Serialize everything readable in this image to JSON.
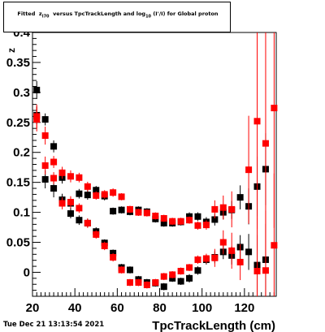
{
  "title_parts": {
    "prefix": "Fitted",
    "z": "z",
    "z_sub": "I70",
    "mid": "versus TpcTrackLength and log",
    "log_sub": "10",
    "suffix": "(I'/I) for Global proton"
  },
  "timestamp": "Tue Dec 21 13:13:54 2021",
  "colors": {
    "series_black": "#000000",
    "series_red": "#ff0000",
    "axis": "#000000"
  },
  "chart_data": {
    "type": "scatter",
    "xlabel": "TpcTrackLength (cm)",
    "ylabel": "z",
    "xlim": [
      20,
      135
    ],
    "ylim": [
      -0.04,
      0.4
    ],
    "x_ticks": [
      20,
      40,
      60,
      80,
      100,
      120
    ],
    "y_ticks": [
      0,
      0.05,
      0.1,
      0.15,
      0.2,
      0.25,
      0.3,
      0.35,
      0.4
    ],
    "x_tick_labels": [
      "20",
      "40",
      "60",
      "80",
      "100",
      "120"
    ],
    "y_tick_labels": [
      "0",
      "0.05",
      "0.1",
      "0.15",
      "0.2",
      "0.25",
      "0.3",
      "0.35",
      "0.4"
    ],
    "grid": false,
    "series": [
      {
        "marker": "square",
        "color": "#000000",
        "points": [
          {
            "x": 22,
            "y": 0.304,
            "e": 0.015
          },
          {
            "x": 22,
            "y": 0.262,
            "e": 0.015
          },
          {
            "x": 26,
            "y": 0.255,
            "e": 0.01
          },
          {
            "x": 26,
            "y": 0.155,
            "e": 0.015
          },
          {
            "x": 30,
            "y": 0.21,
            "e": 0.01
          },
          {
            "x": 30,
            "y": 0.14,
            "e": 0.015
          },
          {
            "x": 34,
            "y": 0.121,
            "e": 0.01
          },
          {
            "x": 34,
            "y": 0.158,
            "e": 0.01
          },
          {
            "x": 38,
            "y": 0.115,
            "e": 0.01
          },
          {
            "x": 38,
            "y": 0.098,
            "e": 0.008
          },
          {
            "x": 42,
            "y": 0.131,
            "e": 0.008
          },
          {
            "x": 42,
            "y": 0.087,
            "e": 0.008
          },
          {
            "x": 46,
            "y": 0.129,
            "e": 0.008
          },
          {
            "x": 46,
            "y": 0.082,
            "e": 0.007
          },
          {
            "x": 50,
            "y": 0.137,
            "e": 0.007
          },
          {
            "x": 50,
            "y": 0.068,
            "e": 0.007
          },
          {
            "x": 54,
            "y": 0.127,
            "e": 0.007
          },
          {
            "x": 54,
            "y": 0.049,
            "e": 0.006
          },
          {
            "x": 58,
            "y": 0.102,
            "e": 0.006
          },
          {
            "x": 58,
            "y": 0.032,
            "e": 0.006
          },
          {
            "x": 62,
            "y": 0.104,
            "e": 0.006
          },
          {
            "x": 62,
            "y": 0.008,
            "e": 0.006
          },
          {
            "x": 66,
            "y": 0.101,
            "e": 0.006
          },
          {
            "x": 66,
            "y": 0.004,
            "e": 0.006
          },
          {
            "x": 70,
            "y": 0.104,
            "e": 0.006
          },
          {
            "x": 70,
            "y": -0.012,
            "e": 0.006
          },
          {
            "x": 74,
            "y": 0.101,
            "e": 0.006
          },
          {
            "x": 74,
            "y": -0.017,
            "e": 0.006
          },
          {
            "x": 78,
            "y": 0.089,
            "e": 0.006
          },
          {
            "x": 78,
            "y": -0.018,
            "e": 0.006
          },
          {
            "x": 82,
            "y": 0.082,
            "e": 0.006
          },
          {
            "x": 82,
            "y": -0.024,
            "e": 0.006
          },
          {
            "x": 86,
            "y": 0.082,
            "e": 0.006
          },
          {
            "x": 86,
            "y": -0.01,
            "e": 0.006
          },
          {
            "x": 90,
            "y": 0.084,
            "e": 0.006
          },
          {
            "x": 90,
            "y": -0.015,
            "e": 0.006
          },
          {
            "x": 94,
            "y": 0.093,
            "e": 0.007
          },
          {
            "x": 94,
            "y": -0.01,
            "e": 0.007
          },
          {
            "x": 98,
            "y": 0.093,
            "e": 0.007
          },
          {
            "x": 98,
            "y": 0.003,
            "e": 0.007
          },
          {
            "x": 102,
            "y": 0.084,
            "e": 0.008
          },
          {
            "x": 102,
            "y": 0.021,
            "e": 0.008
          },
          {
            "x": 106,
            "y": 0.088,
            "e": 0.01
          },
          {
            "x": 106,
            "y": 0.025,
            "e": 0.01
          },
          {
            "x": 110,
            "y": 0.1,
            "e": 0.012
          },
          {
            "x": 110,
            "y": 0.034,
            "e": 0.012
          },
          {
            "x": 114,
            "y": 0.104,
            "e": 0.015
          },
          {
            "x": 114,
            "y": 0.028,
            "e": 0.015
          },
          {
            "x": 118,
            "y": 0.125,
            "e": 0.02
          },
          {
            "x": 118,
            "y": 0.042,
            "e": 0.02
          },
          {
            "x": 122,
            "y": 0.11,
            "e": 0.03
          },
          {
            "x": 122,
            "y": 0.034,
            "e": 0.03
          },
          {
            "x": 126,
            "y": 0.143,
            "e": 0.05
          },
          {
            "x": 126,
            "y": 0.012,
            "e": 0.05
          },
          {
            "x": 130,
            "y": 0.172,
            "e": 0.06
          },
          {
            "x": 130,
            "y": 0.021,
            "e": 0.06
          }
        ]
      },
      {
        "marker": "square",
        "color": "#ff0000",
        "points": [
          {
            "x": 22,
            "y": 0.26,
            "e": 0.02
          },
          {
            "x": 22,
            "y": 0.255,
            "e": 0.02
          },
          {
            "x": 26,
            "y": 0.228,
            "e": 0.015
          },
          {
            "x": 26,
            "y": 0.178,
            "e": 0.015
          },
          {
            "x": 30,
            "y": 0.184,
            "e": 0.01
          },
          {
            "x": 30,
            "y": 0.157,
            "e": 0.01
          },
          {
            "x": 34,
            "y": 0.166,
            "e": 0.01
          },
          {
            "x": 34,
            "y": 0.115,
            "e": 0.01
          },
          {
            "x": 38,
            "y": 0.16,
            "e": 0.01
          },
          {
            "x": 38,
            "y": 0.117,
            "e": 0.01
          },
          {
            "x": 42,
            "y": 0.158,
            "e": 0.008
          },
          {
            "x": 42,
            "y": 0.107,
            "e": 0.008
          },
          {
            "x": 46,
            "y": 0.143,
            "e": 0.008
          },
          {
            "x": 46,
            "y": 0.082,
            "e": 0.008
          },
          {
            "x": 50,
            "y": 0.128,
            "e": 0.007
          },
          {
            "x": 50,
            "y": 0.063,
            "e": 0.007
          },
          {
            "x": 54,
            "y": 0.13,
            "e": 0.007
          },
          {
            "x": 54,
            "y": 0.044,
            "e": 0.007
          },
          {
            "x": 58,
            "y": 0.133,
            "e": 0.007
          },
          {
            "x": 58,
            "y": 0.025,
            "e": 0.007
          },
          {
            "x": 62,
            "y": 0.126,
            "e": 0.006
          },
          {
            "x": 62,
            "y": 0.004,
            "e": 0.006
          },
          {
            "x": 66,
            "y": 0.105,
            "e": 0.006
          },
          {
            "x": 66,
            "y": -0.017,
            "e": 0.006
          },
          {
            "x": 70,
            "y": 0.1,
            "e": 0.006
          },
          {
            "x": 70,
            "y": -0.017,
            "e": 0.006
          },
          {
            "x": 74,
            "y": 0.099,
            "e": 0.006
          },
          {
            "x": 74,
            "y": -0.021,
            "e": 0.006
          },
          {
            "x": 78,
            "y": 0.094,
            "e": 0.006
          },
          {
            "x": 78,
            "y": -0.017,
            "e": 0.006
          },
          {
            "x": 82,
            "y": 0.09,
            "e": 0.006
          },
          {
            "x": 82,
            "y": -0.007,
            "e": 0.006
          },
          {
            "x": 86,
            "y": 0.085,
            "e": 0.006
          },
          {
            "x": 86,
            "y": -0.004,
            "e": 0.006
          },
          {
            "x": 90,
            "y": 0.085,
            "e": 0.006
          },
          {
            "x": 90,
            "y": 0.002,
            "e": 0.006
          },
          {
            "x": 94,
            "y": 0.087,
            "e": 0.006
          },
          {
            "x": 94,
            "y": 0.008,
            "e": 0.006
          },
          {
            "x": 98,
            "y": 0.078,
            "e": 0.007
          },
          {
            "x": 98,
            "y": 0.021,
            "e": 0.007
          },
          {
            "x": 102,
            "y": 0.079,
            "e": 0.008
          },
          {
            "x": 102,
            "y": 0.023,
            "e": 0.008
          },
          {
            "x": 106,
            "y": 0.105,
            "e": 0.015
          },
          {
            "x": 106,
            "y": 0.024,
            "e": 0.015
          },
          {
            "x": 110,
            "y": 0.108,
            "e": 0.02
          },
          {
            "x": 110,
            "y": 0.05,
            "e": 0.02
          },
          {
            "x": 114,
            "y": 0.105,
            "e": 0.03
          },
          {
            "x": 114,
            "y": 0.036,
            "e": 0.03
          },
          {
            "x": 118,
            "y": 0.017,
            "e": 0.03
          },
          {
            "x": 122,
            "y": 0.171,
            "e": 0.09
          },
          {
            "x": 126,
            "y": 0.252,
            "e": 0.18
          },
          {
            "x": 126,
            "y": 0.002,
            "e": 0.09
          },
          {
            "x": 130,
            "y": 0.215,
            "e": 0.2
          },
          {
            "x": 130,
            "y": 0.003,
            "e": 0.1
          },
          {
            "x": 134,
            "y": 0.274,
            "e": 0.2
          },
          {
            "x": 134,
            "y": 0.045,
            "e": 0.12
          }
        ]
      }
    ]
  }
}
